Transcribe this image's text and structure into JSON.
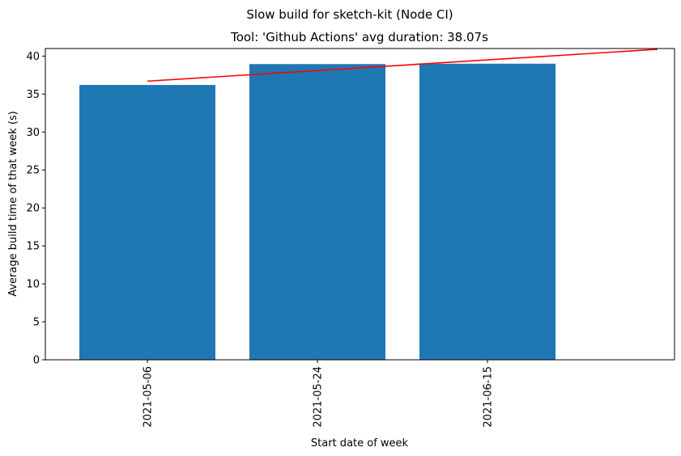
{
  "chart_data": {
    "type": "bar",
    "suptitle": "Slow build for sketch-kit (Node CI)",
    "title": "Tool: 'Github Actions' avg duration: 38.07s",
    "xlabel": "Start date of week",
    "ylabel": "Average build time of that week (s)",
    "categories": [
      "2021-05-06",
      "2021-05-24",
      "2021-06-15"
    ],
    "values": [
      36.2,
      38.95,
      39.0
    ],
    "ylim": [
      0,
      41
    ],
    "yticks": [
      0,
      5,
      10,
      15,
      20,
      25,
      30,
      35,
      40
    ],
    "bar_color": "#1f77b4",
    "trend_line": {
      "color": "#ff0000",
      "x": [
        0,
        3
      ],
      "y": [
        36.7,
        40.9
      ]
    },
    "grid": false
  }
}
